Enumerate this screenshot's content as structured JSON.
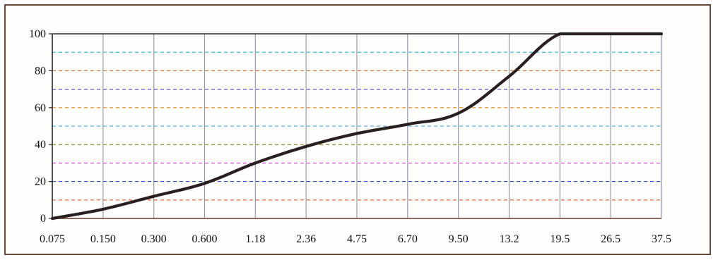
{
  "chart_data": {
    "type": "line",
    "title": "",
    "xlabel": "",
    "ylabel": "",
    "x_scale": "categorical",
    "x": [
      "0.075",
      "0.150",
      "0.300",
      "0.600",
      "1.18",
      "2.36",
      "4.75",
      "6.70",
      "9.50",
      "13.2",
      "19.5",
      "26.5",
      "37.5"
    ],
    "series": [
      {
        "values": [
          0,
          5,
          12,
          19,
          30,
          39,
          46,
          51,
          57,
          77,
          100,
          100,
          100
        ]
      }
    ],
    "yticks": [
      "0",
      "20",
      "40",
      "60",
      "80",
      "100"
    ],
    "ylim": [
      0,
      100
    ],
    "grid": true,
    "legend": "none",
    "line_color": "#2a1f1f",
    "grid_colors": [
      "#e05a2a",
      "#2a4fd8",
      "#d03ad0",
      "#8a7a18",
      "#2a9ad8",
      "#e08a20",
      "#4a3ad0",
      "#d06a2a",
      "#2ab0d8",
      "#1a1a1a"
    ]
  }
}
